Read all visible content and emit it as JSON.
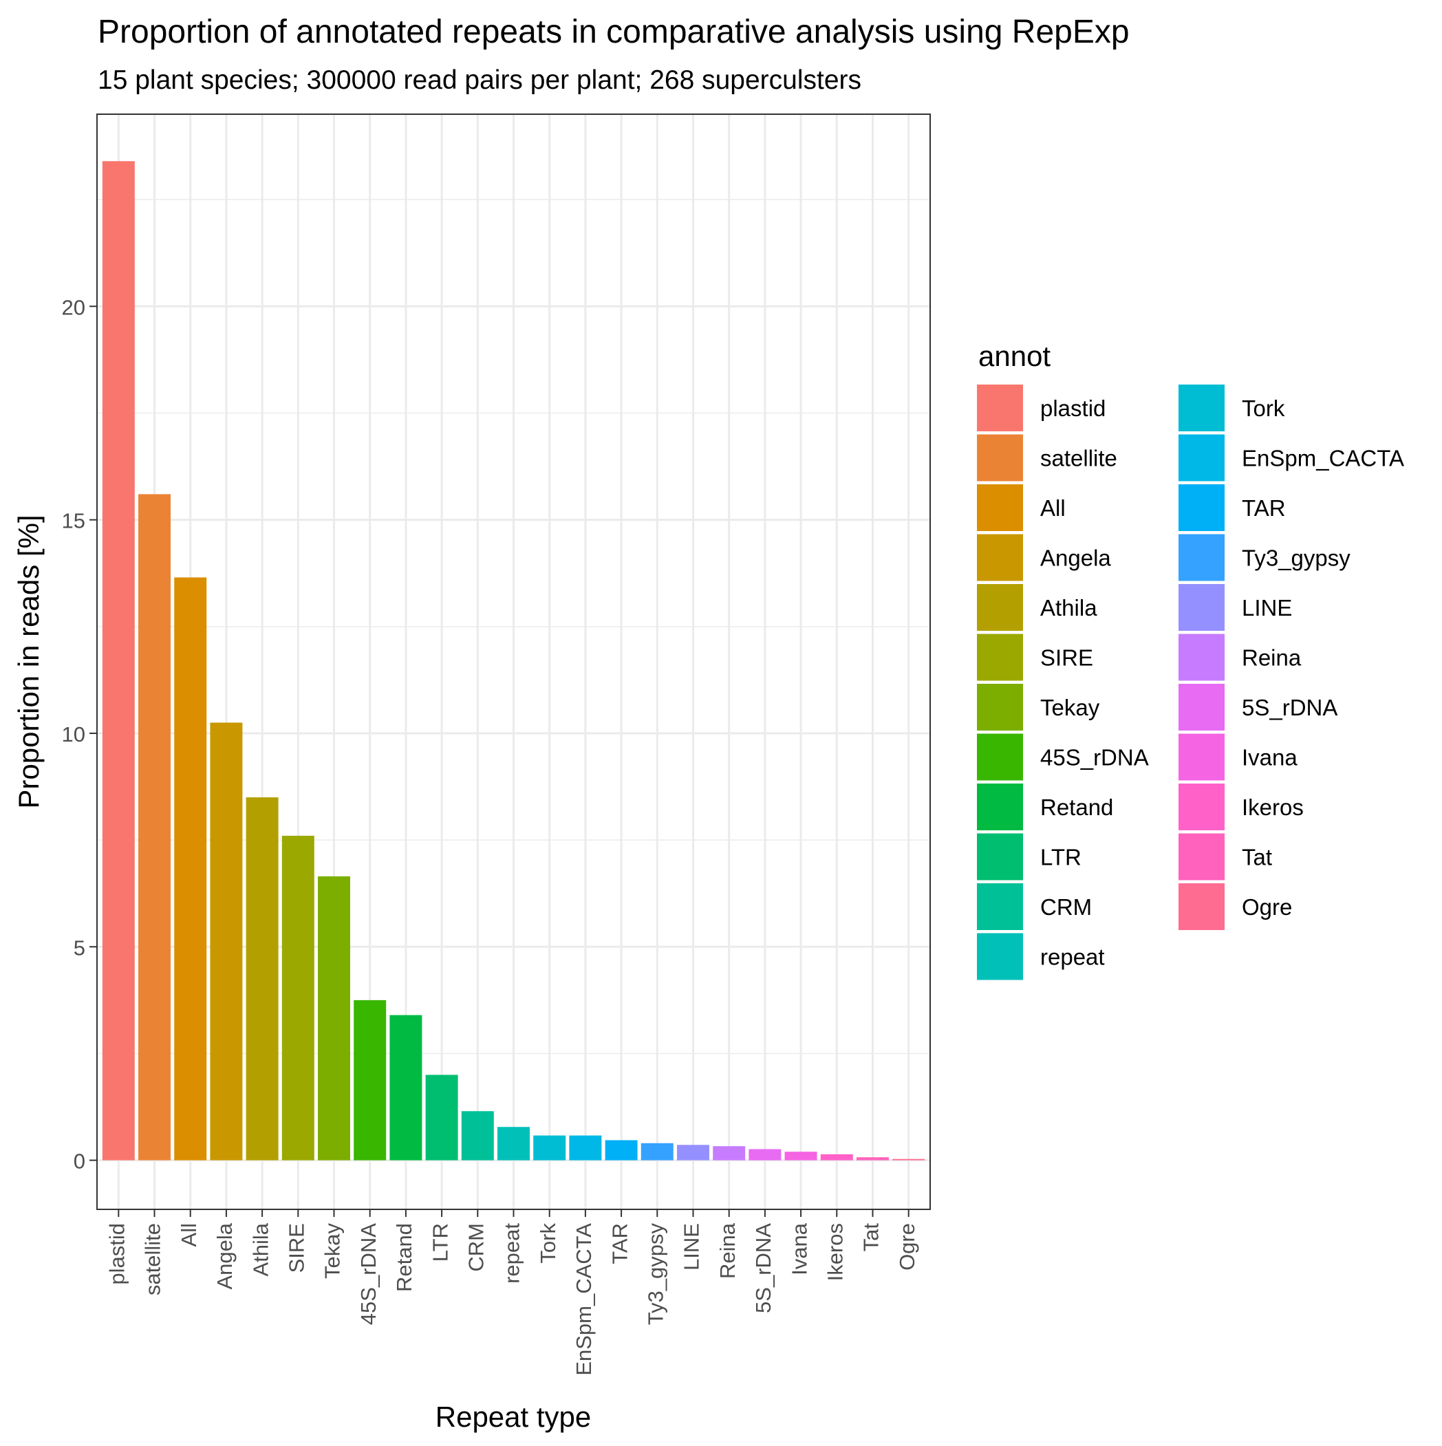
{
  "chart_data": {
    "type": "bar",
    "title": "Proportion of annotated repeats in comparative analysis using RepExp",
    "subtitle": "15 plant species; 300000 read pairs per plant; 268 superculsters",
    "xlabel": "Repeat type",
    "ylabel": "Proportion in reads [%]",
    "ylim": [
      -1.15,
      24.5
    ],
    "yticks": [
      0,
      5,
      10,
      15,
      20
    ],
    "ytick_labels": [
      "0",
      "5",
      "10",
      "15",
      "20"
    ],
    "grid": true,
    "legend_title": "annot",
    "legend_position": "right",
    "categories": [
      "plastid",
      "satellite",
      "All",
      "Angela",
      "Athila",
      "SIRE",
      "Tekay",
      "45S_rDNA",
      "Retand",
      "LTR",
      "CRM",
      "repeat",
      "Tork",
      "EnSpm_CACTA",
      "TAR",
      "Ty3_gypsy",
      "LINE",
      "Reina",
      "5S_rDNA",
      "Ivana",
      "Ikeros",
      "Tat",
      "Ogre"
    ],
    "values": [
      23.4,
      15.6,
      13.65,
      10.25,
      8.5,
      7.6,
      6.65,
      3.75,
      3.4,
      2.0,
      1.15,
      0.78,
      0.58,
      0.58,
      0.47,
      0.4,
      0.36,
      0.33,
      0.26,
      0.2,
      0.14,
      0.07,
      0.03
    ],
    "colors": [
      "#F8766D",
      "#EB8335",
      "#DB8E00",
      "#C99800",
      "#B3A000",
      "#9AA800",
      "#7CAE00",
      "#39B600",
      "#00BA42",
      "#00BE70",
      "#00C097",
      "#00C0B8",
      "#00BDD4",
      "#00B8E7",
      "#00B0F6",
      "#35A2FF",
      "#9590FF",
      "#C77CFF",
      "#E76BF3",
      "#F564E3",
      "#FF61C9",
      "#FF62BC",
      "#FF6C91"
    ]
  }
}
